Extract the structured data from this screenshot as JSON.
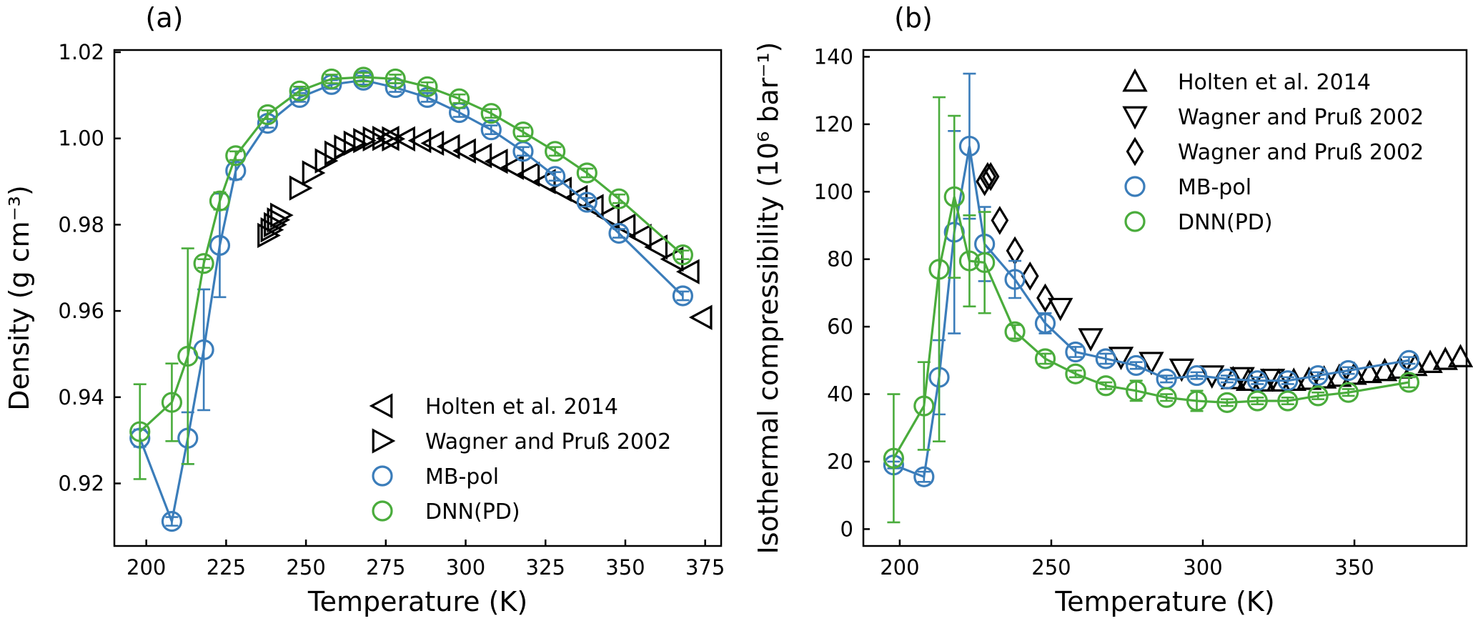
{
  "colors": {
    "mbpol": "#3b7dba",
    "dnn": "#4aac3c",
    "expt": "#000000"
  },
  "chart_data": [
    {
      "type": "line",
      "panel_label": "(a)",
      "xlabel": "Temperature (K)",
      "ylabel": "Density (g cm⁻³)",
      "xlim": [
        190,
        380
      ],
      "ylim": [
        0.9055,
        1.0205
      ],
      "xticks": [
        200,
        225,
        250,
        275,
        300,
        325,
        350,
        375
      ],
      "yticks": [
        0.92,
        0.94,
        0.96,
        0.98,
        1.0,
        1.02
      ],
      "ytick_labels": [
        "0.92",
        "0.94",
        "0.96",
        "0.98",
        "1.00",
        "1.02"
      ],
      "legend_loc": "lower-right",
      "series": [
        {
          "name": "Holten et al. 2014",
          "marker": "triangle-left",
          "color": "#000000",
          "line": false,
          "x": [
            276,
            281,
            286,
            290,
            295,
            300,
            305,
            310,
            315,
            320,
            325,
            330,
            335,
            340,
            345,
            350,
            355,
            360,
            365,
            370,
            374
          ],
          "y": [
            1.0,
            0.9999,
            0.9995,
            0.9989,
            0.9981,
            0.9971,
            0.996,
            0.9947,
            0.9933,
            0.9917,
            0.99,
            0.9882,
            0.9863,
            0.9842,
            0.982,
            0.9797,
            0.9773,
            0.9748,
            0.972,
            0.9691,
            0.9585
          ]
        },
        {
          "name": "Wagner and Pruß 2002",
          "marker": "triangle-right",
          "color": "#000000",
          "line": false,
          "x": [
            238,
            239,
            240,
            241,
            242,
            248,
            252,
            256,
            259,
            262,
            265,
            268,
            271,
            274,
            277
          ],
          "y": [
            0.9775,
            0.9788,
            0.98,
            0.9811,
            0.9822,
            0.9885,
            0.992,
            0.9948,
            0.9966,
            0.998,
            0.9989,
            0.9995,
            0.9999,
            1.0,
            0.9999
          ]
        },
        {
          "name": "MB-pol",
          "marker": "circle",
          "color": "#3b7dba",
          "line": true,
          "x": [
            198,
            208,
            213,
            218,
            223,
            228,
            238,
            248,
            258,
            268,
            278,
            288,
            298,
            308,
            318,
            328,
            338,
            348,
            368
          ],
          "y": [
            0.9305,
            0.9112,
            0.9305,
            0.951,
            0.9752,
            0.9925,
            1.0035,
            1.0095,
            1.0125,
            1.0135,
            1.0118,
            1.0095,
            1.006,
            1.002,
            0.997,
            0.9912,
            0.9852,
            0.978,
            0.9635
          ],
          "err": [
            0.002,
            0.001,
            0.006,
            0.014,
            0.012,
            0.002,
            0.001,
            0.001,
            0.001,
            0.001,
            0.001,
            0.001,
            0.001,
            0.001,
            0.001,
            0.001,
            0.001,
            0.001,
            0.001
          ]
        },
        {
          "name": "DNN(PD)",
          "marker": "circle",
          "color": "#4aac3c",
          "line": true,
          "x": [
            198,
            208,
            213,
            218,
            223,
            228,
            238,
            248,
            258,
            268,
            278,
            288,
            298,
            308,
            318,
            328,
            338,
            348,
            368
          ],
          "y": [
            0.932,
            0.9388,
            0.9495,
            0.971,
            0.9855,
            0.996,
            1.0055,
            1.011,
            1.0138,
            1.0142,
            1.0138,
            1.012,
            1.0092,
            1.0058,
            1.0015,
            0.997,
            0.992,
            0.986,
            0.973
          ],
          "err": [
            0.011,
            0.009,
            0.025,
            0.001,
            0.002,
            0.001,
            0.001,
            0.001,
            0.001,
            0.001,
            0.001,
            0.001,
            0.001,
            0.001,
            0.001,
            0.001,
            0.001,
            0.001,
            0.001
          ]
        }
      ]
    },
    {
      "type": "line",
      "panel_label": "(b)",
      "xlabel": "Temperature (K)",
      "ylabel": "Isothermal compressibility (10⁶ bar⁻¹)",
      "xlim": [
        188,
        387
      ],
      "ylim": [
        -5,
        142
      ],
      "xticks": [
        200,
        250,
        300,
        350
      ],
      "yticks": [
        0,
        20,
        40,
        60,
        80,
        100,
        120,
        140
      ],
      "ytick_labels": [
        "0",
        "20",
        "40",
        "60",
        "80",
        "100",
        "120",
        "140"
      ],
      "legend_loc": "upper-right",
      "series": [
        {
          "name": "Holten et al. 2014",
          "marker": "triangle-up",
          "color": "#000000",
          "line": false,
          "x": [
            310,
            315,
            320,
            325,
            330,
            335,
            340,
            345,
            350,
            355,
            360,
            365,
            370,
            375,
            380,
            385
          ],
          "y": [
            44.5,
            44.0,
            43.8,
            43.8,
            44.0,
            44.3,
            44.7,
            45.2,
            45.8,
            46.3,
            46.9,
            47.6,
            48.4,
            49.3,
            50.2,
            51.0
          ]
        },
        {
          "name": "Wagner and Pruß 2002",
          "marker": "triangle-down",
          "color": "#000000",
          "line": false,
          "x": [
            253,
            263,
            273,
            283,
            293,
            303,
            313,
            323
          ],
          "y": [
            65.5,
            56.5,
            51.0,
            49.5,
            47.5,
            45.5,
            45.0,
            44.5
          ]
        },
        {
          "name": "Wagner and Pruß 2002",
          "marker": "diamond",
          "color": "#000000",
          "line": false,
          "x": [
            228,
            229,
            230,
            233,
            238,
            243,
            248
          ],
          "y": [
            103.0,
            104.5,
            104.5,
            91.5,
            82.5,
            75.0,
            68.5
          ]
        },
        {
          "name": "MB-pol",
          "marker": "circle",
          "color": "#3b7dba",
          "line": true,
          "x": [
            198,
            208,
            213,
            218,
            223,
            228,
            238,
            248,
            258,
            268,
            278,
            288,
            298,
            308,
            318,
            328,
            338,
            348,
            368
          ],
          "y": [
            19.0,
            15.5,
            45.0,
            88.0,
            113.5,
            84.5,
            74.0,
            61.0,
            52.5,
            50.5,
            48.5,
            44.5,
            45.5,
            44.5,
            44.0,
            44.0,
            45.5,
            47.0,
            50.0
          ],
          "err": [
            1.0,
            1.5,
            11.0,
            30.0,
            21.5,
            11.0,
            5.5,
            3.0,
            1.5,
            1.5,
            1.0,
            1.0,
            1.0,
            1.0,
            1.0,
            1.0,
            1.0,
            1.0,
            1.0
          ]
        },
        {
          "name": "DNN(PD)",
          "marker": "circle",
          "color": "#4aac3c",
          "line": true,
          "x": [
            198,
            208,
            213,
            218,
            223,
            228,
            238,
            248,
            258,
            268,
            278,
            288,
            298,
            308,
            318,
            328,
            338,
            348,
            368
          ],
          "y": [
            21.0,
            36.5,
            77.0,
            98.5,
            79.5,
            79.0,
            58.5,
            50.5,
            46.0,
            42.5,
            41.0,
            39.0,
            38.0,
            37.5,
            38.0,
            38.0,
            39.5,
            40.5,
            43.5
          ],
          "err": [
            19.0,
            13.0,
            51.0,
            24.0,
            13.5,
            15.0,
            2.0,
            1.5,
            1.0,
            1.0,
            3.0,
            1.0,
            3.0,
            1.0,
            1.0,
            1.0,
            1.0,
            1.0,
            1.5
          ]
        }
      ]
    }
  ]
}
